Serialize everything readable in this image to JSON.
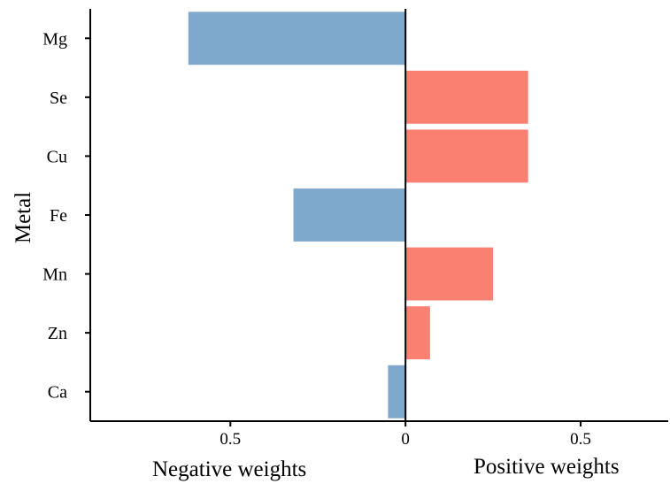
{
  "chart_data": {
    "type": "bar",
    "orientation": "horizontal",
    "ylabel": "Metal",
    "xlabel_left": "Negative weights",
    "xlabel_right": "Positive weights",
    "categories": [
      "Mg",
      "Se",
      "Cu",
      "Fe",
      "Mn",
      "Zn",
      "Ca"
    ],
    "values": [
      -0.62,
      0.35,
      0.35,
      -0.32,
      0.25,
      0.07,
      -0.05
    ],
    "xlim": [
      -0.9,
      0.75
    ],
    "xticks": [
      {
        "value": -0.5,
        "label": "0.5"
      },
      {
        "value": 0,
        "label": "0"
      },
      {
        "value": 0.5,
        "label": "0.5"
      }
    ],
    "grid": false,
    "colors": {
      "negative": "#7fa9cc",
      "positive": "#fa8072"
    }
  }
}
